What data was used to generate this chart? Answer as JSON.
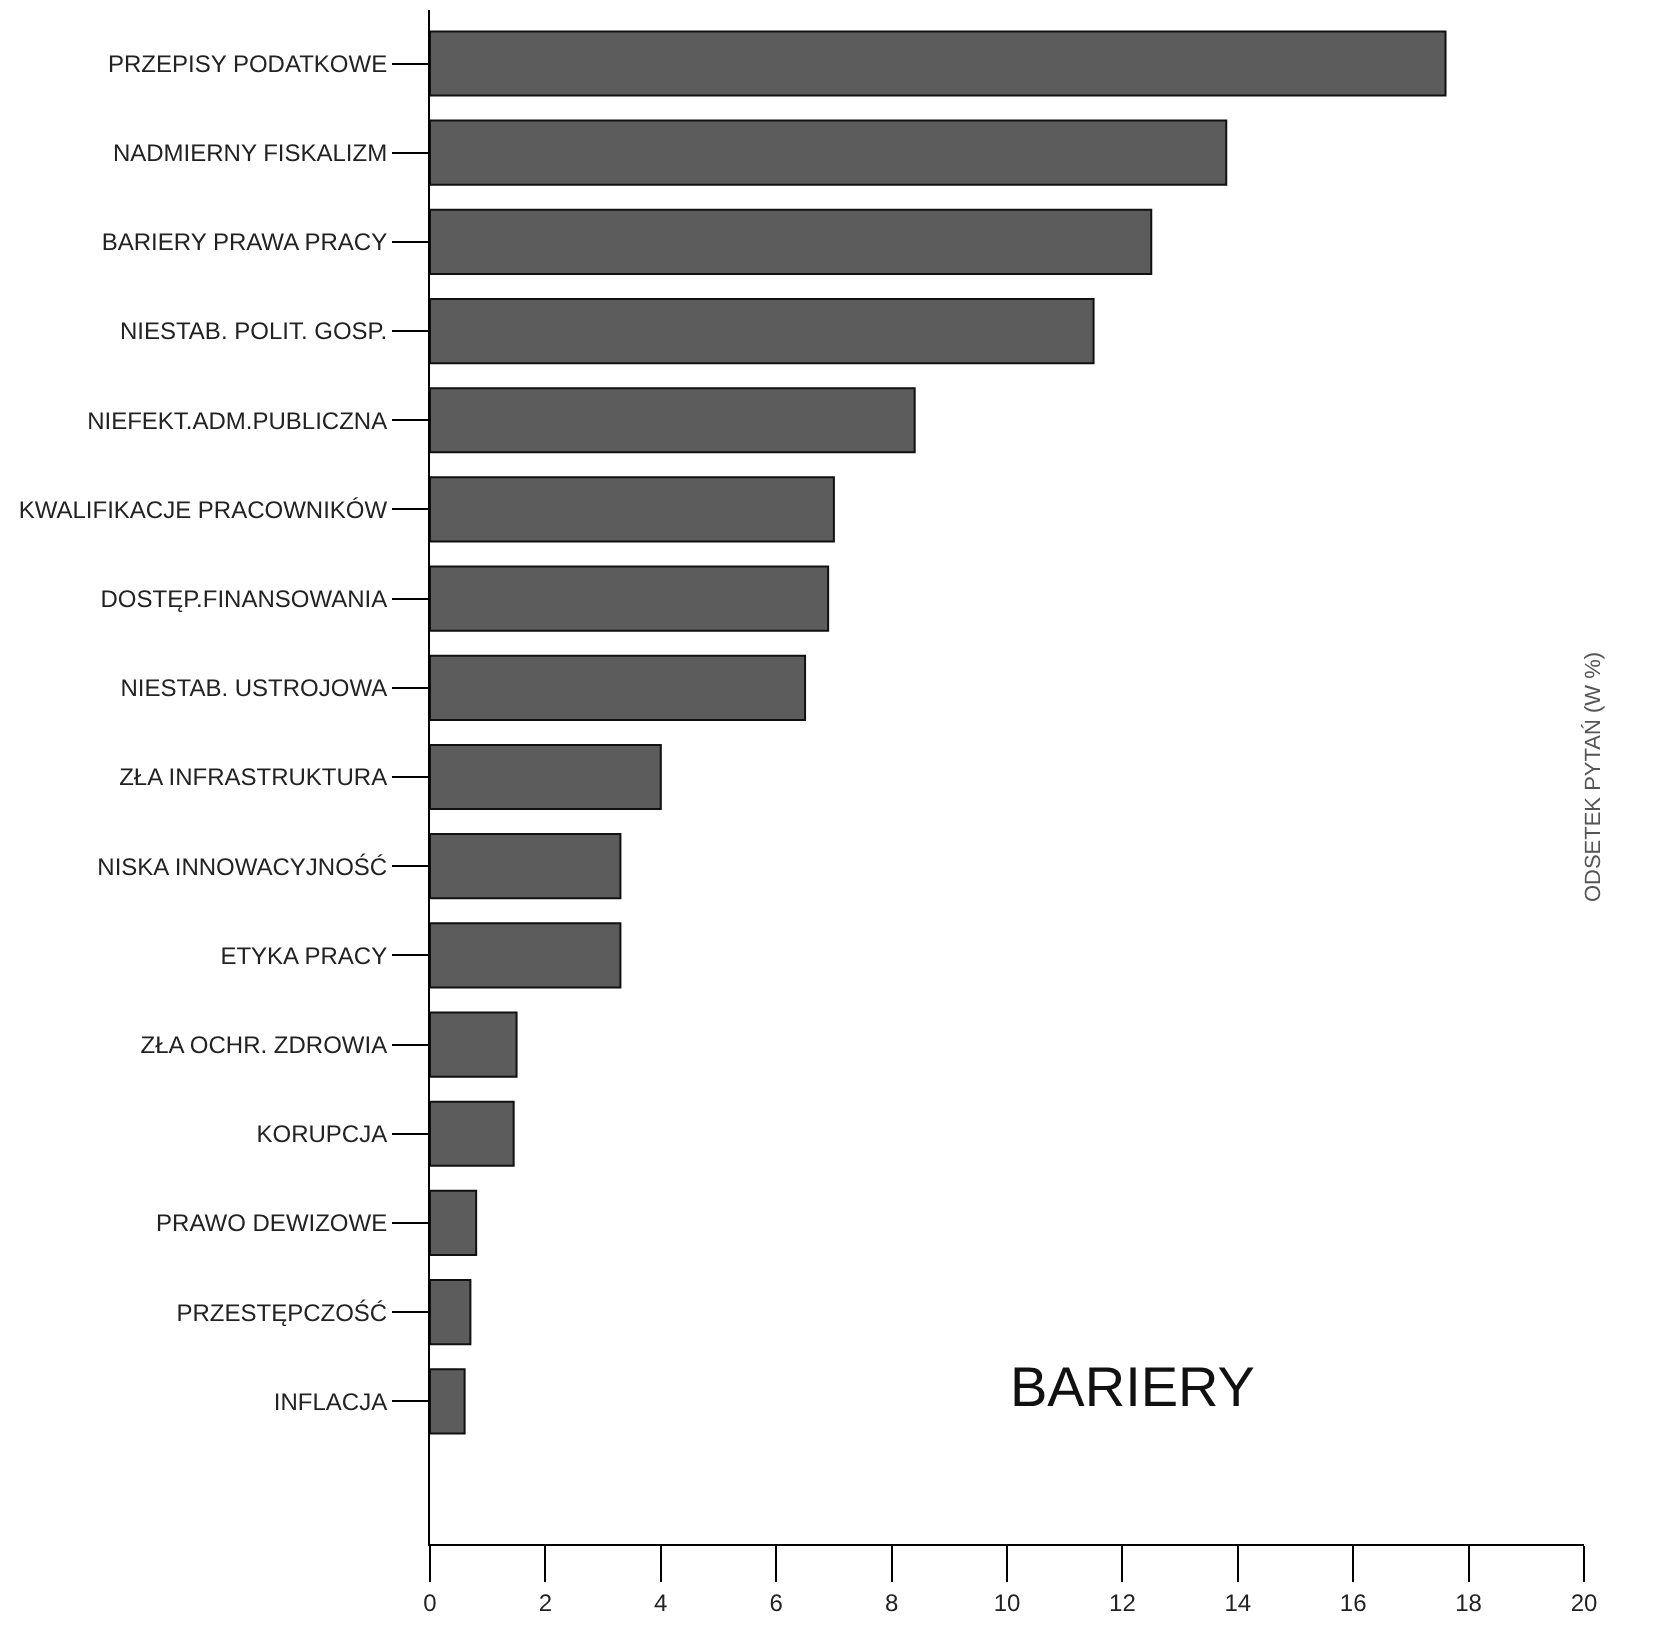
{
  "chart_data": {
    "type": "bar",
    "orientation": "horizontal",
    "y2label": "ODSETEK PYTAŃ (W %)",
    "annotations": [
      "BARIERY"
    ],
    "categories": [
      "PRZEPISY PODATKOWE",
      "NADMIERNY FISKALIZM",
      "BARIERY PRAWA PRACY",
      "NIESTAB. POLIT. GOSP.",
      "NIEFEKT.ADM.PUBLICZNA",
      "KWALIFIKACJE PRACOWNIKÓW",
      "DOSTĘP.FINANSOWANIA",
      "NIESTAB. USTROJOWA",
      "ZŁA INFRASTRUKTURA",
      "NISKA INNOWACYJNOŚĆ",
      "ETYKA PRACY",
      "ZŁA OCHR. ZDROWIA",
      "KORUPCJA",
      "PRAWO DEWIZOWE",
      "PRZESTĘPCZOŚĆ",
      "INFLACJA"
    ],
    "values": [
      17.6,
      13.8,
      12.5,
      11.5,
      8.4,
      7.0,
      6.9,
      6.5,
      4.0,
      3.3,
      3.3,
      1.5,
      1.45,
      0.8,
      0.7,
      0.6
    ],
    "color": "#5c5c5c",
    "xlim": [
      0,
      20
    ],
    "xticks": [
      0,
      2,
      4,
      6,
      8,
      10,
      12,
      14,
      16,
      18,
      20
    ]
  }
}
